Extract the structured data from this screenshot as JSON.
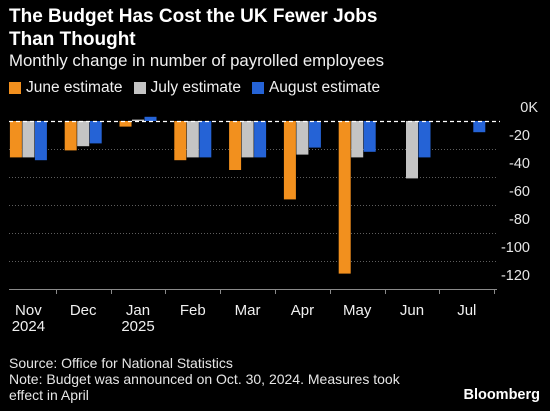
{
  "chart_data": {
    "type": "bar",
    "title": "The Budget Has Cost the UK Fewer Jobs Than Thought",
    "subtitle": "Monthly change in number of payrolled employees",
    "categories": [
      "Nov",
      "Dec",
      "Jan",
      "Feb",
      "Mar",
      "Apr",
      "May",
      "Jun",
      "Jul"
    ],
    "category_years": [
      "2024",
      "",
      "2025",
      "",
      "",
      "",
      "",
      "",
      ""
    ],
    "series": [
      {
        "name": "June estimate",
        "color": "#f2901e",
        "values": [
          -26,
          -21,
          -4,
          -28,
          -35,
          -56,
          -109,
          null,
          null
        ]
      },
      {
        "name": "July estimate",
        "color": "#c4c4c4",
        "values": [
          -26,
          -18,
          1,
          -26,
          -26,
          -24,
          -26,
          -41,
          null
        ]
      },
      {
        "name": "August estimate",
        "color": "#2563d6",
        "values": [
          -28,
          -16,
          3,
          -26,
          -26,
          -19,
          -22,
          -26,
          -8
        ]
      }
    ],
    "yticks": [
      0,
      -20,
      -40,
      -60,
      -80,
      -100,
      -120
    ],
    "ytick_labels": [
      "0K",
      "-20",
      "-40",
      "-60",
      "-80",
      "-100",
      "-120"
    ],
    "ylim": [
      -120,
      0
    ],
    "grid": true,
    "legend_position": "top-left"
  },
  "footer": {
    "source": "Source: Office for National Statistics",
    "note": "Note: Budget was announced on Oct. 30, 2024. Measures took effect in April",
    "logo": "Bloomberg"
  },
  "colors": {
    "background": "#000000",
    "text": "#ffffff",
    "zero_line": "#ffffff",
    "gridline": "#5e5e5e",
    "axis": "#8a8a8a"
  }
}
